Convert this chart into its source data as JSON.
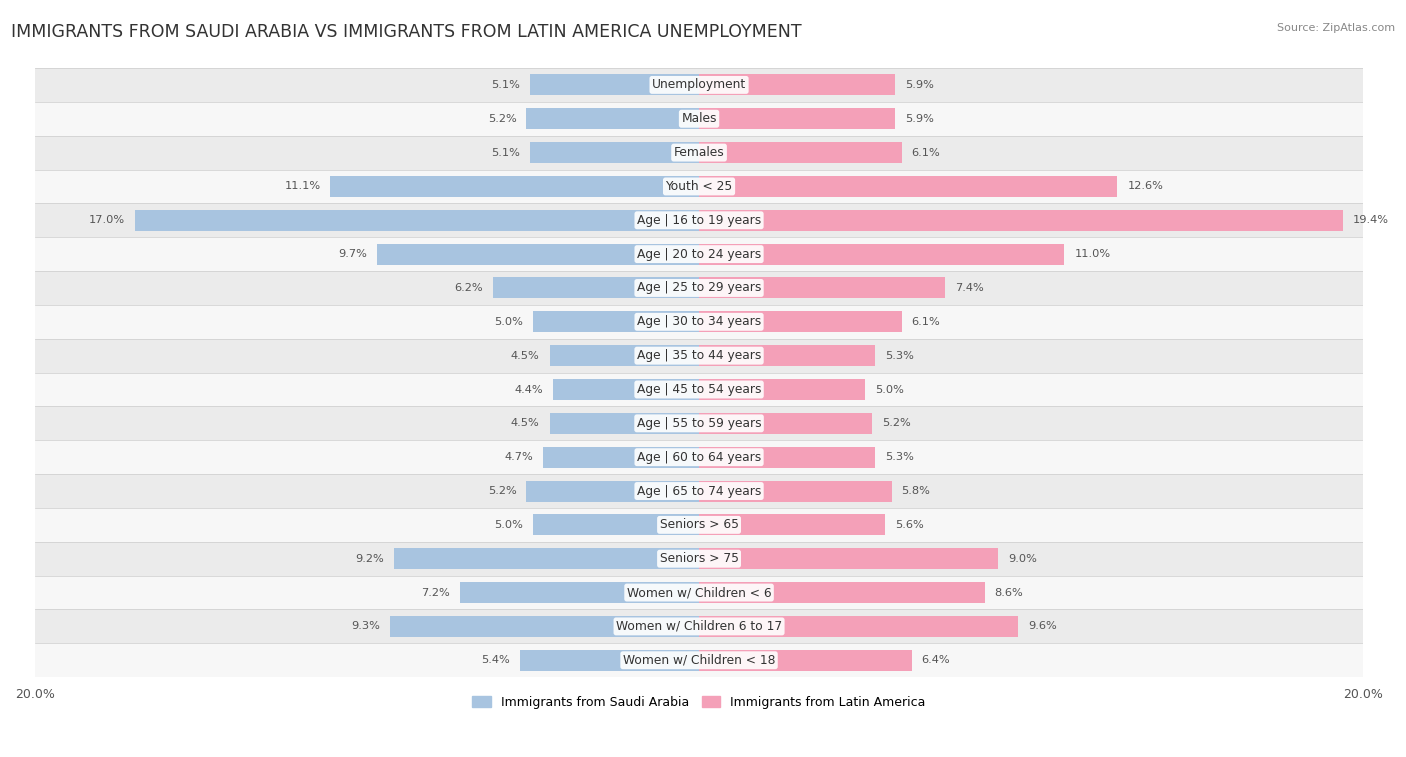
{
  "title": "IMMIGRANTS FROM SAUDI ARABIA VS IMMIGRANTS FROM LATIN AMERICA UNEMPLOYMENT",
  "source": "Source: ZipAtlas.com",
  "categories": [
    "Unemployment",
    "Males",
    "Females",
    "Youth < 25",
    "Age | 16 to 19 years",
    "Age | 20 to 24 years",
    "Age | 25 to 29 years",
    "Age | 30 to 34 years",
    "Age | 35 to 44 years",
    "Age | 45 to 54 years",
    "Age | 55 to 59 years",
    "Age | 60 to 64 years",
    "Age | 65 to 74 years",
    "Seniors > 65",
    "Seniors > 75",
    "Women w/ Children < 6",
    "Women w/ Children 6 to 17",
    "Women w/ Children < 18"
  ],
  "saudi_arabia": [
    5.1,
    5.2,
    5.1,
    11.1,
    17.0,
    9.7,
    6.2,
    5.0,
    4.5,
    4.4,
    4.5,
    4.7,
    5.2,
    5.0,
    9.2,
    7.2,
    9.3,
    5.4
  ],
  "latin_america": [
    5.9,
    5.9,
    6.1,
    12.6,
    19.4,
    11.0,
    7.4,
    6.1,
    5.3,
    5.0,
    5.2,
    5.3,
    5.8,
    5.6,
    9.0,
    8.6,
    9.6,
    6.4
  ],
  "saudi_color": "#a8c4e0",
  "latin_color": "#f4a0b8",
  "saudi_label": "Immigrants from Saudi Arabia",
  "latin_label": "Immigrants from Latin America",
  "axis_limit": 20.0,
  "bg_row_even": "#ebebeb",
  "bg_row_odd": "#f7f7f7",
  "bar_height": 0.62,
  "title_fontsize": 12.5,
  "label_fontsize": 8.8,
  "value_fontsize": 8.2
}
